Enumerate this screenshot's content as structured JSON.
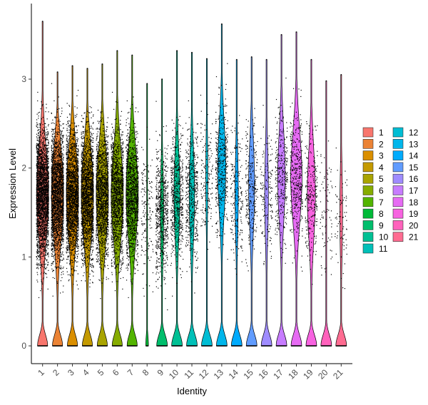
{
  "chart_data": {
    "type": "violin",
    "xlabel": "Identity",
    "ylabel": "Expression Level",
    "ylim": [
      -0.2,
      3.85
    ],
    "yticks": [
      0,
      1,
      2,
      3
    ],
    "categories": [
      "1",
      "2",
      "3",
      "4",
      "5",
      "6",
      "7",
      "8",
      "9",
      "10",
      "11",
      "12",
      "13",
      "14",
      "15",
      "16",
      "17",
      "18",
      "19",
      "20",
      "21"
    ],
    "colors": [
      "#F8766D",
      "#EB8335",
      "#DA8F00",
      "#C49A00",
      "#A9A400",
      "#86AC00",
      "#53B400",
      "#00BA38",
      "#00BE6C",
      "#00C094",
      "#00C0B8",
      "#00BDD4",
      "#00B6EB",
      "#00ABFD",
      "#619CFF",
      "#9F8CFF",
      "#C77CFF",
      "#E66BF3",
      "#F763E0",
      "#FF62BC",
      "#FF6C91"
    ],
    "max_values": [
      3.65,
      3.08,
      3.15,
      3.12,
      3.17,
      3.32,
      3.27,
      2.95,
      3.0,
      3.32,
      3.3,
      3.23,
      3.62,
      3.22,
      3.25,
      3.22,
      3.5,
      3.53,
      3.22,
      2.98,
      3.05
    ],
    "zero_peak_halfwidth": [
      0.38,
      0.38,
      0.38,
      0.38,
      0.38,
      0.38,
      0.38,
      0.1,
      0.4,
      0.4,
      0.4,
      0.4,
      0.4,
      0.4,
      0.4,
      0.4,
      0.4,
      0.4,
      0.4,
      0.4,
      0.4
    ],
    "body_halfwidth": [
      0.45,
      0.45,
      0.45,
      0.45,
      0.45,
      0.45,
      0.45,
      0.0,
      0.12,
      0.22,
      0.2,
      0.08,
      0.3,
      0.12,
      0.22,
      0.14,
      0.28,
      0.42,
      0.3,
      0.03,
      0.1
    ],
    "body_center": [
      1.7,
      1.7,
      1.7,
      1.7,
      1.7,
      1.7,
      1.7,
      1.5,
      1.5,
      1.7,
      1.7,
      1.9,
      2.0,
      1.7,
      1.8,
      1.7,
      1.9,
      1.9,
      1.7,
      1.5,
      1.5
    ],
    "point_density": [
      1.0,
      0.85,
      0.8,
      0.75,
      0.6,
      0.55,
      0.5,
      0.06,
      0.25,
      0.22,
      0.18,
      0.06,
      0.16,
      0.08,
      0.1,
      0.06,
      0.12,
      0.15,
      0.1,
      0.03,
      0.03
    ],
    "legend": {
      "position": "right",
      "columns": 2,
      "labels": [
        "1",
        "2",
        "3",
        "4",
        "5",
        "6",
        "7",
        "8",
        "9",
        "10",
        "11",
        "12",
        "13",
        "14",
        "15",
        "16",
        "17",
        "18",
        "19",
        "20",
        "21"
      ]
    }
  }
}
